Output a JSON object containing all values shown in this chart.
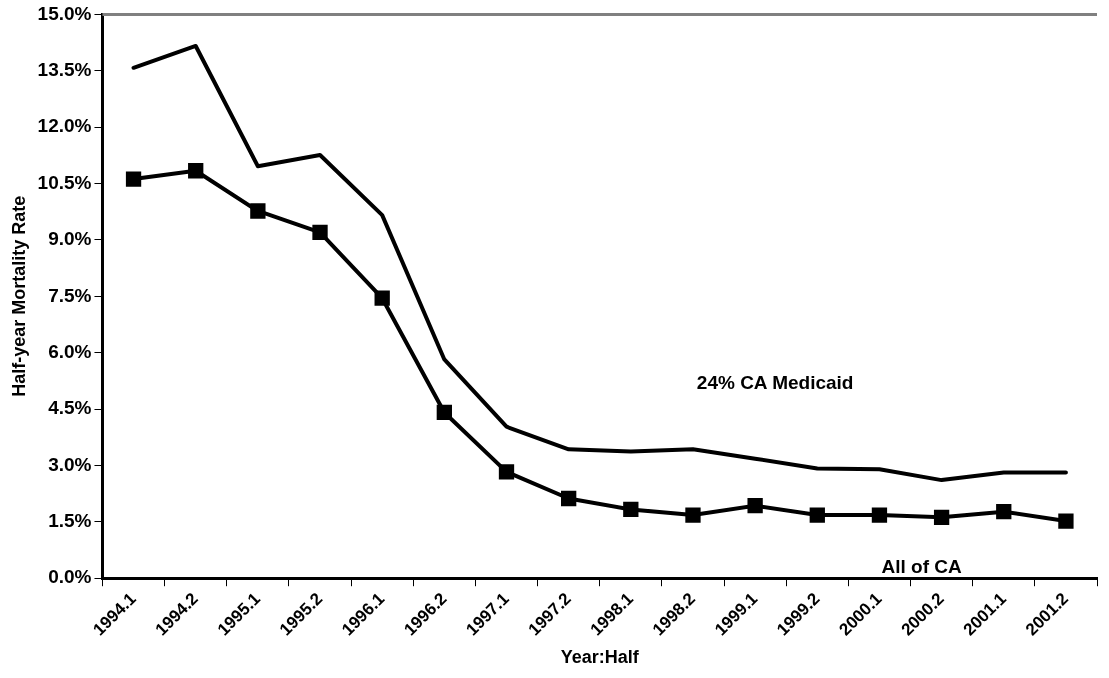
{
  "chart_data": {
    "type": "line",
    "xlabel": "Year:Half",
    "ylabel": "Half-year Mortality Rate",
    "categories": [
      "1994.1",
      "1994.2",
      "1995.1",
      "1995.2",
      "1996.1",
      "1996.2",
      "1997.1",
      "1997.2",
      "1998.1",
      "1998.2",
      "1999.1",
      "1999.2",
      "2000.1",
      "2000.2",
      "2001.1",
      "2001.2"
    ],
    "series": [
      {
        "name": "24% CA Medicaid",
        "color": "#000000",
        "marker": "none",
        "values": [
          13.58,
          14.16,
          10.96,
          11.26,
          9.66,
          5.82,
          4.03,
          3.43,
          3.37,
          3.43,
          3.18,
          2.92,
          2.9,
          2.61,
          2.81,
          2.81
        ]
      },
      {
        "name": "All of CA",
        "color": "#000000",
        "marker": "square",
        "values": [
          10.62,
          10.84,
          9.77,
          9.2,
          7.45,
          4.41,
          2.83,
          2.12,
          1.83,
          1.68,
          1.93,
          1.68,
          1.68,
          1.62,
          1.77,
          1.52
        ]
      }
    ],
    "ylim": [
      0,
      15
    ],
    "yticks": [
      {
        "value": 0,
        "label": "0.0%"
      },
      {
        "value": 1.5,
        "label": "1.5%"
      },
      {
        "value": 3,
        "label": "3.0%"
      },
      {
        "value": 4.5,
        "label": "4.5%"
      },
      {
        "value": 6,
        "label": "6.0%"
      },
      {
        "value": 7.5,
        "label": "7.5%"
      },
      {
        "value": 9,
        "label": "9.0%"
      },
      {
        "value": 10.5,
        "label": "10.5%"
      },
      {
        "value": 12,
        "label": "12.0%"
      },
      {
        "value": 13.5,
        "label": "13.5%"
      },
      {
        "value": 15,
        "label": "15.0%"
      }
    ],
    "grid": false,
    "legend": false,
    "line_style": "solid"
  }
}
